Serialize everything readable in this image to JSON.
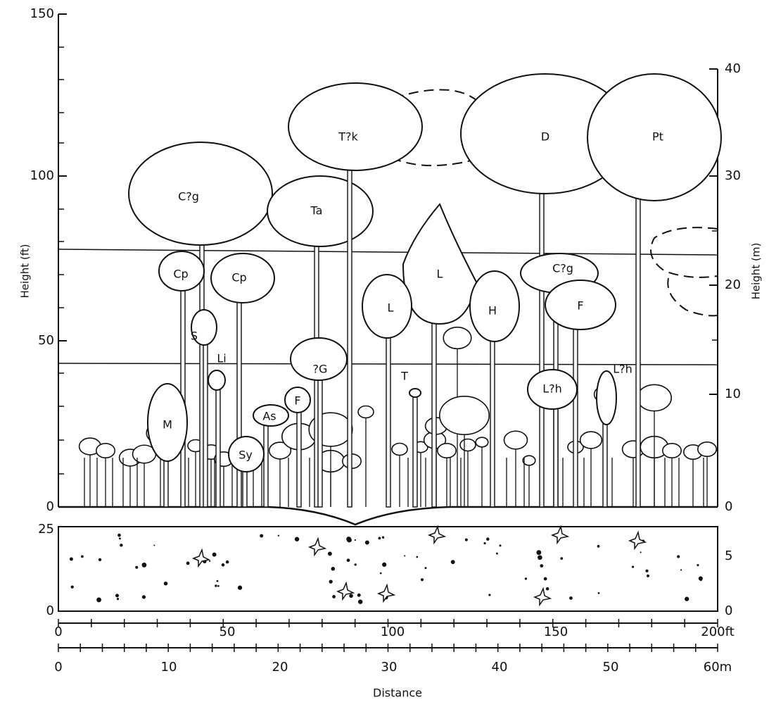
{
  "axes": {
    "left": {
      "label": "Height (ft)",
      "ticks": [
        "150",
        "100",
        "50",
        "0"
      ]
    },
    "right": {
      "label": "Height (m)",
      "ticks": [
        "40",
        "30",
        "20",
        "10",
        "0"
      ]
    },
    "strip_left": {
      "ticks": [
        "25",
        "0"
      ]
    },
    "strip_right": {
      "ticks": [
        "5",
        "0"
      ]
    },
    "bottom_ft": {
      "ticks": [
        "0",
        "50",
        "100",
        "150",
        "200ft"
      ]
    },
    "bottom_m": {
      "ticks": [
        "0",
        "10",
        "20",
        "30",
        "40",
        "50",
        "60m"
      ]
    },
    "bottom_label": "Distance"
  },
  "trees": [
    {
      "label": "C?g"
    },
    {
      "label": "Ta"
    },
    {
      "label": "T?k"
    },
    {
      "label": "D"
    },
    {
      "label": "Pt"
    },
    {
      "label": "Cp"
    },
    {
      "label": "Cp"
    },
    {
      "label": "L"
    },
    {
      "label": "L"
    },
    {
      "label": "H"
    },
    {
      "label": "C?g"
    },
    {
      "label": "F"
    },
    {
      "label": "S"
    },
    {
      "label": "Li"
    },
    {
      "label": "?G"
    },
    {
      "label": "As"
    },
    {
      "label": "F"
    },
    {
      "label": "M"
    },
    {
      "label": "Sy"
    },
    {
      "label": "T"
    },
    {
      "label": "L?h"
    },
    {
      "label": "L?h"
    }
  ]
}
